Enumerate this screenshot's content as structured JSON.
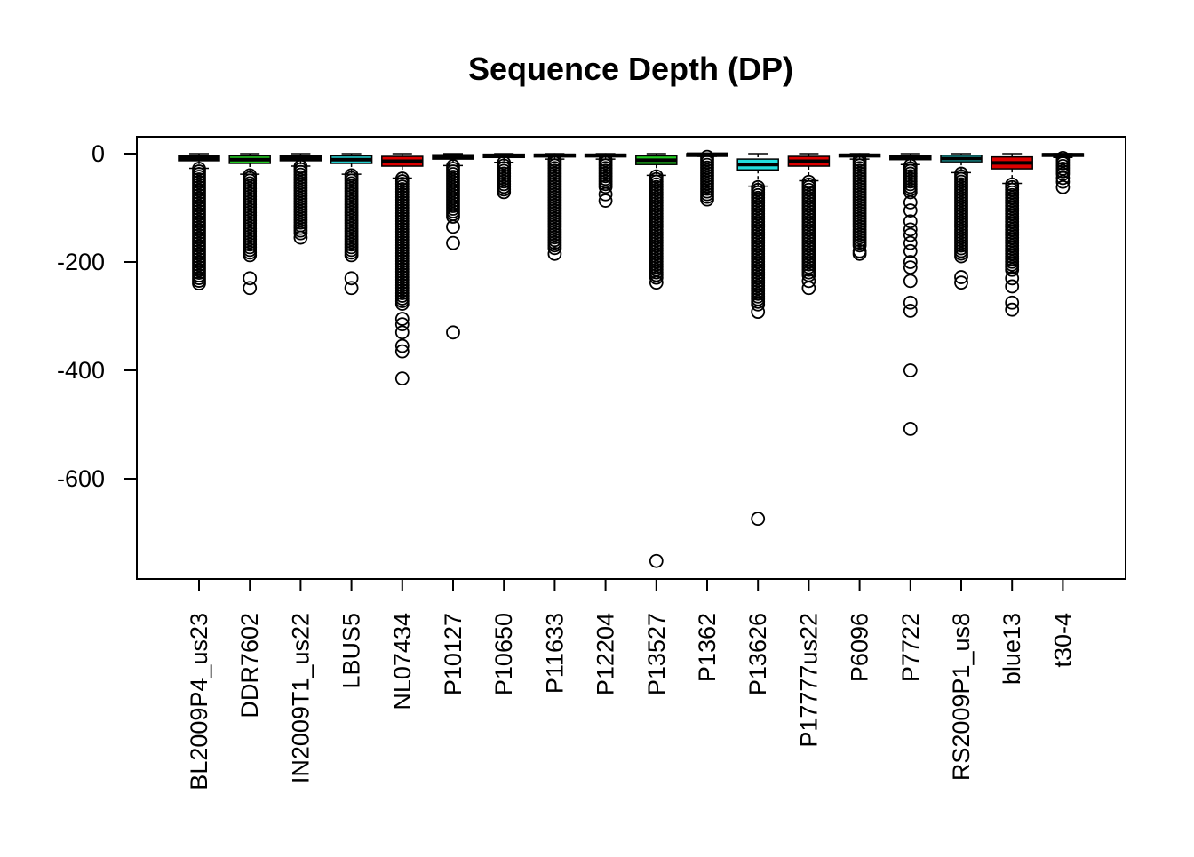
{
  "chart_data": {
    "type": "box",
    "title": "Sequence Depth (DP)",
    "xlabel": "",
    "ylabel": "",
    "ylim": [
      -780,
      30
    ],
    "yticks": [
      0,
      -200,
      -400,
      -600
    ],
    "ytick_labels": [
      "0",
      "-200",
      "-400",
      "-600"
    ],
    "grid": false,
    "legend": "none",
    "categories": [
      "BL2009P4_us23",
      "DDR7602",
      "IN2009T1_us22",
      "LBUS5",
      "NL07434",
      "P10127",
      "P10650",
      "P11633",
      "P12204",
      "P13527",
      "P1362",
      "P13626",
      "P17777us22",
      "P6096",
      "P7722",
      "RS2009P1_us8",
      "blue13",
      "t30-4"
    ],
    "box_colors": [
      "#000000",
      "#22cc22",
      "#000000",
      "#22d0d0",
      "#dd0000",
      "#000000",
      "#000000",
      "#000000",
      "#000000",
      "#22cc22",
      "#000000",
      "#22e0e0",
      "#dd0000",
      "#000000",
      "#000000",
      "#22d0d0",
      "#dd0000",
      "#000000"
    ],
    "boxes": [
      {
        "max": 0,
        "q3": -3,
        "median": -8,
        "q1": -13,
        "min": -27,
        "outlier_top": -28,
        "outlier_bottom": -242,
        "outliers": []
      },
      {
        "max": 0,
        "q3": -4,
        "median": -11,
        "q1": -18,
        "min": -38,
        "outlier_top": -40,
        "outlier_bottom": -190,
        "outliers": [
          -230,
          -248
        ]
      },
      {
        "max": 0,
        "q3": -3,
        "median": -8,
        "q1": -13,
        "min": -23,
        "outlier_top": -24,
        "outlier_bottom": -148,
        "outliers": [
          -155
        ]
      },
      {
        "max": 0,
        "q3": -4,
        "median": -11,
        "q1": -18,
        "min": -38,
        "outlier_top": -40,
        "outlier_bottom": -190,
        "outliers": [
          -230,
          -248
        ]
      },
      {
        "max": 0,
        "q3": -5,
        "median": -14,
        "q1": -23,
        "min": -45,
        "outlier_top": -46,
        "outlier_bottom": -280,
        "outliers": [
          -305,
          -315,
          -330,
          -355,
          -365,
          -415
        ]
      },
      {
        "max": 0,
        "q3": -2,
        "median": -6,
        "q1": -10,
        "min": -22,
        "outlier_top": -23,
        "outlier_bottom": -120,
        "outliers": [
          -135,
          -165,
          -330
        ]
      },
      {
        "max": 0,
        "q3": -1,
        "median": -4,
        "q1": -7,
        "min": -16,
        "outlier_top": -17,
        "outlier_bottom": -73,
        "outliers": []
      },
      {
        "max": 0,
        "q3": -1,
        "median": -3,
        "q1": -6,
        "min": -10,
        "outlier_top": -12,
        "outlier_bottom": -175,
        "outliers": [
          -185
        ]
      },
      {
        "max": 0,
        "q3": -1,
        "median": -3,
        "q1": -5,
        "min": -10,
        "outlier_top": -12,
        "outlier_bottom": -65,
        "outliers": [
          -75,
          -87
        ]
      },
      {
        "max": 0,
        "q3": -4,
        "median": -12,
        "q1": -20,
        "min": -40,
        "outlier_top": -42,
        "outlier_bottom": -230,
        "outliers": [
          -238,
          -752
        ]
      },
      {
        "max": 0,
        "q3": 0,
        "median": -1,
        "q1": -3,
        "min": -5,
        "outlier_top": -6,
        "outlier_bottom": -85,
        "outliers": []
      },
      {
        "max": 0,
        "q3": -10,
        "median": -20,
        "q1": -30,
        "min": -60,
        "outlier_top": -62,
        "outlier_bottom": -280,
        "outliers": [
          -292,
          -674
        ]
      },
      {
        "max": 0,
        "q3": -5,
        "median": -14,
        "q1": -23,
        "min": -50,
        "outlier_top": -52,
        "outlier_bottom": -225,
        "outliers": [
          -235,
          -248
        ]
      },
      {
        "max": 0,
        "q3": -1,
        "median": -3,
        "q1": -5,
        "min": -10,
        "outlier_top": -12,
        "outlier_bottom": -170,
        "outliers": [
          -180,
          -185
        ]
      },
      {
        "max": 0,
        "q3": -3,
        "median": -7,
        "q1": -11,
        "min": -20,
        "outlier_top": -22,
        "outlier_bottom": -75,
        "outliers": [
          -90,
          -105,
          -125,
          -140,
          -150,
          -165,
          -180,
          -200,
          -210,
          -235,
          -275,
          -290,
          -400,
          -508
        ]
      },
      {
        "max": 0,
        "q3": -3,
        "median": -9,
        "q1": -15,
        "min": -35,
        "outlier_top": -37,
        "outlier_bottom": -190,
        "outliers": [
          -228,
          -238
        ]
      },
      {
        "max": 0,
        "q3": -6,
        "median": -17,
        "q1": -28,
        "min": -55,
        "outlier_top": -57,
        "outlier_bottom": -215,
        "outliers": [
          -230,
          -245,
          -275,
          -288
        ]
      },
      {
        "max": 0,
        "q3": 0,
        "median": -2,
        "q1": -4,
        "min": -7,
        "outlier_top": -8,
        "outlier_bottom": -40,
        "outliers": [
          -45,
          -52,
          -62
        ]
      }
    ]
  }
}
